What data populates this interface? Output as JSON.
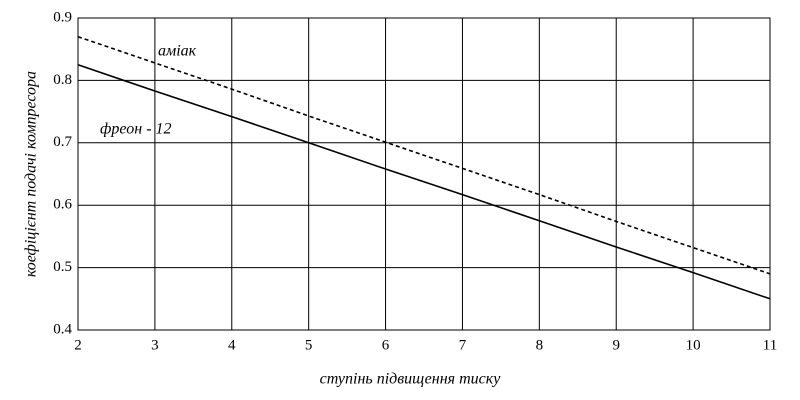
{
  "chart_data": {
    "type": "line",
    "x_label": "ступінь підвищення тиску",
    "y_label": "коефіцієнт подачі компресора",
    "x": [
      2,
      3,
      4,
      5,
      6,
      7,
      8,
      9,
      10,
      11
    ],
    "series": [
      {
        "name": "аміак",
        "color": "#000000",
        "dashed": true,
        "values": [
          0.87,
          0.828,
          0.786,
          0.743,
          0.701,
          0.659,
          0.617,
          0.574,
          0.532,
          0.49
        ]
      },
      {
        "name": "фреон - 12",
        "color": "#000000",
        "dashed": false,
        "values": [
          0.825,
          0.783,
          0.742,
          0.7,
          0.658,
          0.617,
          0.575,
          0.533,
          0.492,
          0.45
        ]
      }
    ],
    "xlim": [
      2,
      11
    ],
    "xticks": [
      2,
      3,
      4,
      5,
      6,
      7,
      8,
      9,
      10,
      11
    ],
    "ylim": [
      0.4,
      0.9
    ],
    "yticks": [
      0.4,
      0.5,
      0.6,
      0.7,
      0.8,
      0.9
    ],
    "grid": true
  }
}
